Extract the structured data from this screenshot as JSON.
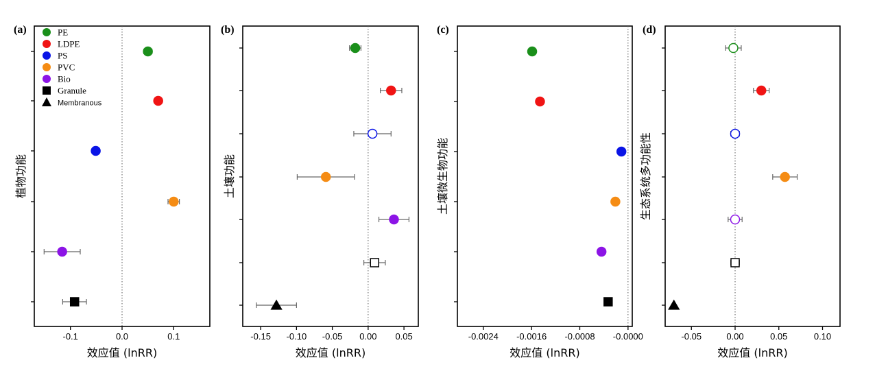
{
  "legend": [
    {
      "label": "PE",
      "marker": "circle",
      "color": "#1a8f1a"
    },
    {
      "label": "LDPE",
      "marker": "circle",
      "color": "#f01414"
    },
    {
      "label": "PS",
      "marker": "circle",
      "color": "#0a14e6"
    },
    {
      "label": "PVC",
      "marker": "circle",
      "color": "#f58c14"
    },
    {
      "label": "Bio",
      "marker": "circle",
      "color": "#8c14e6"
    },
    {
      "label": "Granule",
      "marker": "square",
      "color": "#000000"
    },
    {
      "label": "Membranous",
      "marker": "triangle",
      "color": "#000000"
    }
  ],
  "chart_data": [
    {
      "type": "scatter",
      "panel_label": "(a)",
      "xlabel": "效应值 (lnRR)",
      "ylabel": "植物功能",
      "xlim": [
        -0.17,
        0.17
      ],
      "xticks": [
        -0.1,
        0.0,
        0.1
      ],
      "xtick_labels": [
        "-0.1",
        "0.0",
        "0.1"
      ],
      "points": [
        {
          "group": "PE",
          "y_rank": 1,
          "x": 0.05,
          "err": 0.008,
          "color": "#1a8f1a",
          "marker": "circle",
          "filled": true
        },
        {
          "group": "LDPE",
          "y_rank": 2,
          "x": 0.07,
          "err": 0.007,
          "color": "#f01414",
          "marker": "circle",
          "filled": true
        },
        {
          "group": "PS",
          "y_rank": 3,
          "x": -0.051,
          "err": 0.006,
          "color": "#0a14e6",
          "marker": "circle",
          "filled": true
        },
        {
          "group": "PVC",
          "y_rank": 4,
          "x": 0.1,
          "err": 0.011,
          "color": "#f58c14",
          "marker": "circle",
          "filled": true
        },
        {
          "group": "Bio",
          "y_rank": 5,
          "x": -0.116,
          "err": 0.035,
          "color": "#8c14e6",
          "marker": "circle",
          "filled": true
        },
        {
          "group": "Granule",
          "y_rank": 6,
          "x": -0.092,
          "err": 0.023,
          "color": "#000000",
          "marker": "square",
          "filled": true
        }
      ]
    },
    {
      "type": "scatter",
      "panel_label": "(b)",
      "xlabel": "效应值 (lnRR)",
      "ylabel": "土壤功能",
      "xlim": [
        -0.175,
        0.07
      ],
      "xticks": [
        -0.15,
        -0.1,
        -0.05,
        0.0,
        0.05
      ],
      "xtick_labels": [
        "-0.15",
        "-0.10",
        "-0.05",
        "0.00",
        "0.05"
      ],
      "points": [
        {
          "group": "PE",
          "y_rank": 1,
          "x": -0.018,
          "err": 0.008,
          "color": "#1a8f1a",
          "marker": "circle",
          "filled": true
        },
        {
          "group": "LDPE",
          "y_rank": 2,
          "x": 0.032,
          "err": 0.015,
          "color": "#f01414",
          "marker": "circle",
          "filled": true
        },
        {
          "group": "PS",
          "y_rank": 3,
          "x": 0.006,
          "err": 0.026,
          "color": "#0a14e6",
          "marker": "circle",
          "filled": false
        },
        {
          "group": "PVC",
          "y_rank": 4,
          "x": -0.059,
          "err": 0.04,
          "color": "#f58c14",
          "marker": "circle",
          "filled": true
        },
        {
          "group": "Bio",
          "y_rank": 5,
          "x": 0.036,
          "err": 0.021,
          "color": "#8c14e6",
          "marker": "circle",
          "filled": true
        },
        {
          "group": "Granule",
          "y_rank": 6,
          "x": 0.009,
          "err": 0.015,
          "color": "#000000",
          "marker": "square",
          "filled": false
        },
        {
          "group": "Membranous",
          "y_rank": 7,
          "x": -0.128,
          "err": 0.028,
          "color": "#000000",
          "marker": "triangle",
          "filled": true
        }
      ]
    },
    {
      "type": "scatter",
      "panel_label": "(c)",
      "xlabel": "效应值 (lnRR)",
      "ylabel": "土壤微生物功能",
      "xlim": [
        -0.00283,
        7e-05
      ],
      "xticks": [
        -0.0024,
        -0.0016,
        -0.0008,
        0.0
      ],
      "xtick_labels": [
        "-0.0024",
        "-0.0016",
        "-0.0008",
        "-0.0000"
      ],
      "points": [
        {
          "group": "PE",
          "y_rank": 1,
          "x": -0.00159,
          "err": 6e-05,
          "color": "#1a8f1a",
          "marker": "circle",
          "filled": true
        },
        {
          "group": "LDPE",
          "y_rank": 2,
          "x": -0.00146,
          "err": 6e-05,
          "color": "#f01414",
          "marker": "circle",
          "filled": true
        },
        {
          "group": "PS",
          "y_rank": 3,
          "x": -0.00011,
          "err": 5e-05,
          "color": "#0a14e6",
          "marker": "circle",
          "filled": true
        },
        {
          "group": "PVC",
          "y_rank": 4,
          "x": -0.00021,
          "err": 6e-05,
          "color": "#f58c14",
          "marker": "circle",
          "filled": true
        },
        {
          "group": "Bio",
          "y_rank": 5,
          "x": -0.00044,
          "err": 5e-05,
          "color": "#8c14e6",
          "marker": "circle",
          "filled": true
        },
        {
          "group": "Granule",
          "y_rank": 6,
          "x": -0.00033,
          "err": 5e-05,
          "color": "#000000",
          "marker": "square",
          "filled": true
        }
      ]
    },
    {
      "type": "scatter",
      "panel_label": "(d)",
      "xlabel": "效应值 (lnRR)",
      "ylabel": "生态系统多功能性",
      "xlim": [
        -0.08,
        0.12
      ],
      "xticks": [
        -0.05,
        0.0,
        0.05,
        0.1
      ],
      "xtick_labels": [
        "-0.05",
        "0.00",
        "0.05",
        "0.10"
      ],
      "points": [
        {
          "group": "PE",
          "y_rank": 1,
          "x": -0.002,
          "err": 0.009,
          "color": "#1a8f1a",
          "marker": "circle",
          "filled": false
        },
        {
          "group": "LDPE",
          "y_rank": 2,
          "x": 0.03,
          "err": 0.009,
          "color": "#f01414",
          "marker": "circle",
          "filled": true
        },
        {
          "group": "PS",
          "y_rank": 3,
          "x": 0.0,
          "err": 0.005,
          "color": "#0a14e6",
          "marker": "circle",
          "filled": false
        },
        {
          "group": "PVC",
          "y_rank": 4,
          "x": 0.057,
          "err": 0.014,
          "color": "#f58c14",
          "marker": "circle",
          "filled": true
        },
        {
          "group": "Bio",
          "y_rank": 5,
          "x": 0.0,
          "err": 0.008,
          "color": "#8c14e6",
          "marker": "circle",
          "filled": false
        },
        {
          "group": "Granule",
          "y_rank": 6,
          "x": 0.0,
          "err": 0.005,
          "color": "#000000",
          "marker": "square",
          "filled": false
        },
        {
          "group": "Membranous",
          "y_rank": 7,
          "x": -0.07,
          "err": 0.0,
          "color": "#000000",
          "marker": "triangle",
          "filled": true
        }
      ]
    }
  ]
}
